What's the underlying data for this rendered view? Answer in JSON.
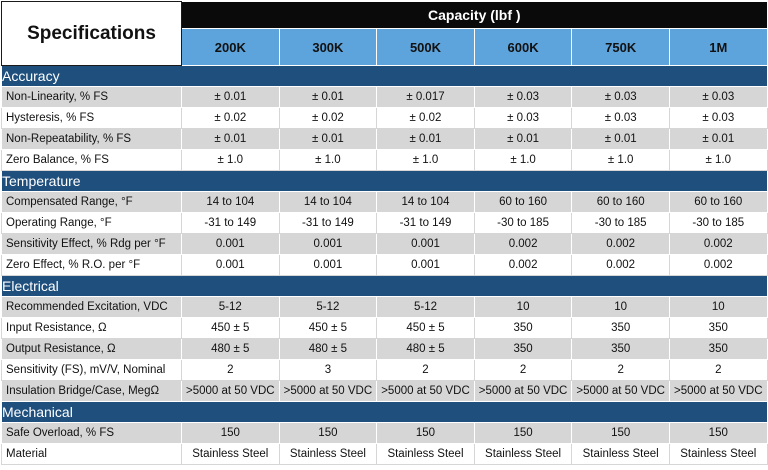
{
  "header": {
    "specifications_label": "Specifications",
    "capacity_title": "Capacity (lbf )",
    "capacities": [
      "200K",
      "300K",
      "500K",
      "600K",
      "750K",
      "1M"
    ]
  },
  "sections": [
    {
      "title": "Accuracy",
      "rows": [
        {
          "label": "Non-Linearity, % FS",
          "values": [
            "± 0.01",
            "± 0.01",
            "± 0.017",
            "± 0.03",
            "± 0.03",
            "± 0.03"
          ]
        },
        {
          "label": "Hysteresis, % FS",
          "values": [
            "± 0.02",
            "± 0.02",
            "± 0.02",
            "± 0.03",
            "± 0.03",
            "± 0.03"
          ]
        },
        {
          "label": "Non-Repeatability, % FS",
          "values": [
            "± 0.01",
            "± 0.01",
            "± 0.01",
            "± 0.01",
            "± 0.01",
            "± 0.01"
          ]
        },
        {
          "label": "Zero Balance, % FS",
          "values": [
            "± 1.0",
            "± 1.0",
            "± 1.0",
            "± 1.0",
            "± 1.0",
            "± 1.0"
          ]
        }
      ]
    },
    {
      "title": "Temperature",
      "rows": [
        {
          "label": "Compensated Range, °F",
          "values": [
            "14 to 104",
            "14 to 104",
            "14 to 104",
            "60 to 160",
            "60 to 160",
            "60 to 160"
          ]
        },
        {
          "label": "Operating Range, °F",
          "values": [
            "-31 to 149",
            "-31 to 149",
            "-31 to 149",
            "-30 to 185",
            "-30 to 185",
            "-30 to 185"
          ]
        },
        {
          "label": "Sensitivity Effect, % Rdg per °F",
          "values": [
            "0.001",
            "0.001",
            "0.001",
            "0.002",
            "0.002",
            "0.002"
          ]
        },
        {
          "label": "Zero Effect, % R.O. per °F",
          "values": [
            "0.001",
            "0.001",
            "0.001",
            "0.002",
            "0.002",
            "0.002"
          ]
        }
      ]
    },
    {
      "title": "Electrical",
      "rows": [
        {
          "label": "Recommended Excitation, VDC",
          "values": [
            "5-12",
            "5-12",
            "5-12",
            "10",
            "10",
            "10"
          ]
        },
        {
          "label": "Input Resistance, Ω",
          "values": [
            "450 ± 5",
            "450 ± 5",
            "450 ± 5",
            "350",
            "350",
            "350"
          ]
        },
        {
          "label": "Output Resistance, Ω",
          "values": [
            "480 ± 5",
            "480 ± 5",
            "480 ± 5",
            "350",
            "350",
            "350"
          ]
        },
        {
          "label": "Sensitivity (FS), mV/V, Nominal",
          "values": [
            "2",
            "3",
            "2",
            "2",
            "2",
            "2"
          ]
        },
        {
          "label": "Insulation Bridge/Case, MegΩ",
          "values": [
            ">5000 at 50 VDC",
            ">5000 at 50 VDC",
            ">5000 at 50 VDC",
            ">5000 at 50 VDC",
            ">5000 at 50 VDC",
            ">5000 at 50 VDC"
          ]
        }
      ]
    },
    {
      "title": "Mechanical",
      "rows": [
        {
          "label": "Safe Overload, % FS",
          "values": [
            "150",
            "150",
            "150",
            "150",
            "150",
            "150"
          ]
        },
        {
          "label": "Material",
          "values": [
            "Stainless Steel",
            "Stainless Steel",
            "Stainless Steel",
            "Stainless Steel",
            "Stainless Steel",
            "Stainless Steel"
          ]
        }
      ]
    }
  ],
  "colors": {
    "section_bg": "#1f4f7d",
    "capacity_bg": "#5ea4dc",
    "title_bg": "#0a0a0a",
    "row_gray": "#d6d6d6"
  }
}
